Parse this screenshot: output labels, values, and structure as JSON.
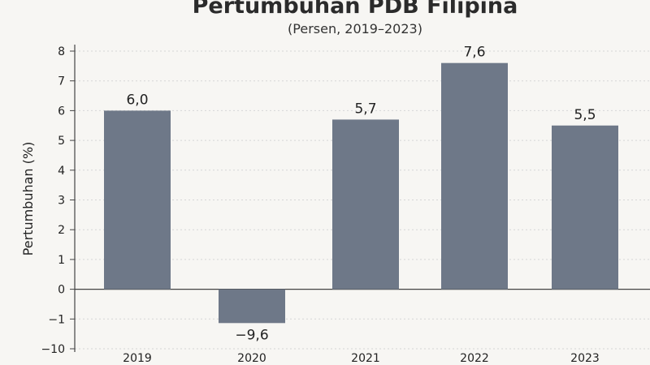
{
  "chart_data": {
    "type": "bar",
    "title": "Pertumbuhan PDB Filipina",
    "subtitle": "(Persen, 2019–2023)",
    "ylabel": "Pertumbuhan (%)",
    "xlabel": "",
    "categories": [
      "2019",
      "2020",
      "2021",
      "2022",
      "2023"
    ],
    "values": [
      6.0,
      -9.6,
      5.7,
      7.6,
      5.5
    ],
    "data_labels": [
      "6,0",
      "−9,6",
      "5,7",
      "7,6",
      "5,5"
    ],
    "y_ticks": [
      "8",
      "7",
      "6",
      "5",
      "4",
      "3",
      "2",
      "1",
      "0",
      "−1",
      "−10"
    ],
    "y_scale_note": "broken axis below zero",
    "grid": true,
    "bar_color": "#6e7888"
  }
}
